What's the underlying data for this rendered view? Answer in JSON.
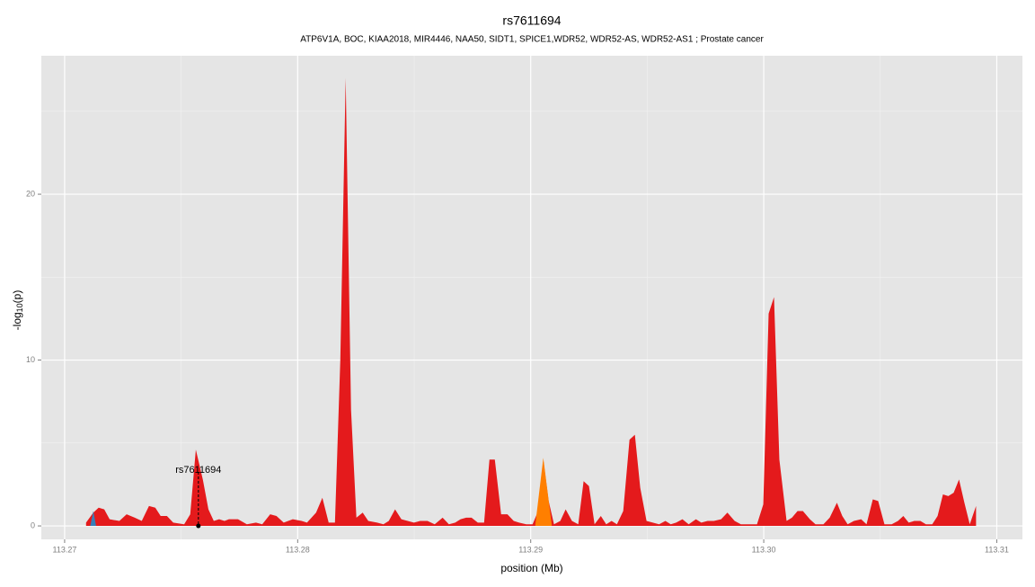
{
  "chart_data": {
    "type": "area",
    "title": "rs7611694",
    "subtitle": "ATP6V1A, BOC, KIAA2018, MIR4446, NAA50, SIDT1, SPICE1,WDR52, WDR52-AS, WDR52-AS1 ; Prostate cancer",
    "xlabel": "position (Mb)",
    "ylabel": [
      "-log",
      "10",
      "(p)"
    ],
    "xlim": [
      113.269,
      113.3111
    ],
    "ylim": [
      -0.81,
      28.35
    ],
    "xticks": [
      113.27,
      113.28,
      113.29,
      {
        "value": 113.3,
        "label": "113.30"
      },
      113.31
    ],
    "yticks": [
      0,
      10,
      20
    ],
    "grid": true,
    "annotation": {
      "text": "rs7611694",
      "x": 113.27574,
      "y": 0
    },
    "series": [
      {
        "color": "#e41a1c",
        "x": [
          113.27092,
          113.27123,
          113.27146,
          113.2717,
          113.27193,
          113.27235,
          113.27266,
          113.27301,
          113.27331,
          113.27362,
          113.27389,
          113.27412,
          113.27439,
          113.27466,
          113.27513,
          113.27539,
          113.27563,
          113.27593,
          113.27617,
          113.2764,
          113.27663,
          113.27686,
          113.27705,
          113.27744,
          113.27782,
          113.27821,
          113.27848,
          113.27882,
          113.27909,
          113.2794,
          113.27979,
          113.28017,
          113.2804,
          113.28079,
          113.28106,
          113.28133,
          113.2816,
          113.28183,
          113.28206,
          113.28229,
          113.28252,
          113.28279,
          113.28303,
          113.28341,
          113.28368,
          113.28391,
          113.28418,
          113.28445,
          113.28472,
          113.28499,
          113.28526,
          113.28557,
          113.28588,
          113.28622,
          113.28649,
          113.28676,
          113.28699,
          113.28723,
          113.28746,
          113.28773,
          113.288,
          113.28823,
          113.28846,
          113.28873,
          113.289,
          113.28927,
          113.2895,
          113.28981,
          113.29008,
          113.29035,
          113.29054,
          113.29077,
          113.291,
          113.29127,
          113.2915,
          113.29177,
          113.29204,
          113.29227,
          113.2925,
          113.29274,
          113.29301,
          113.29324,
          113.29347,
          113.2937,
          113.29397,
          113.29424,
          113.29447,
          113.2947,
          113.29497,
          113.29524,
          113.29551,
          113.29578,
          113.29601,
          113.29624,
          113.29651,
          113.29678,
          113.29709,
          113.29732,
          113.29759,
          113.29786,
          113.29817,
          113.29844,
          113.29875,
          113.29902,
          113.29933,
          113.29971,
          113.29998,
          113.30021,
          113.30044,
          113.30067,
          113.30098,
          113.30121,
          113.30145,
          113.30168,
          113.30198,
          113.30222,
          113.30256,
          113.30283,
          113.30314,
          113.30337,
          113.3036,
          113.30387,
          113.30418,
          113.30441,
          113.30468,
          113.30491,
          113.30518,
          113.30549,
          113.30576,
          113.30599,
          113.30622,
          113.30646,
          113.30672,
          113.30696,
          113.30723,
          113.30746,
          113.30769,
          113.30792,
          113.30815,
          113.30838,
          113.30861,
          113.30884,
          113.30911
        ],
        "values": [
          0.2,
          0.8,
          1.1,
          1.0,
          0.4,
          0.3,
          0.7,
          0.5,
          0.3,
          1.2,
          1.1,
          0.6,
          0.6,
          0.2,
          0.1,
          0.7,
          4.6,
          2.8,
          1.0,
          0.3,
          0.4,
          0.3,
          0.4,
          0.4,
          0.1,
          0.2,
          0.1,
          0.7,
          0.6,
          0.2,
          0.4,
          0.3,
          0.2,
          0.8,
          1.7,
          0.2,
          0.2,
          10,
          27,
          7,
          0.5,
          0.8,
          0.3,
          0.2,
          0.1,
          0.3,
          1.0,
          0.4,
          0.3,
          0.2,
          0.3,
          0.3,
          0.1,
          0.5,
          0.1,
          0.2,
          0.4,
          0.5,
          0.5,
          0.2,
          0.2,
          4.0,
          4.0,
          0.7,
          0.7,
          0.3,
          0.2,
          0.1,
          0.1,
          1.0,
          4.0,
          1.5,
          0.1,
          0.3,
          1.0,
          0.3,
          0.1,
          2.7,
          2.4,
          0.1,
          0.6,
          0.1,
          0.3,
          0.1,
          0.9,
          5.2,
          5.5,
          2.3,
          0.3,
          0.2,
          0.1,
          0.3,
          0.1,
          0.2,
          0.4,
          0.1,
          0.4,
          0.2,
          0.3,
          0.3,
          0.4,
          0.8,
          0.3,
          0.1,
          0.1,
          0.1,
          1.3,
          12.8,
          13.8,
          4,
          0.3,
          0.5,
          0.9,
          0.9,
          0.4,
          0.1,
          0.1,
          0.5,
          1.4,
          0.6,
          0.1,
          0.3,
          0.4,
          0.1,
          1.6,
          1.5,
          0.1,
          0.1,
          0.3,
          0.6,
          0.2,
          0.3,
          0.3,
          0.1,
          0.1,
          0.6,
          1.9,
          1.8,
          2.0,
          2.8,
          1.4,
          0.1,
          1.2
        ]
      },
      {
        "color": "#ff7f00",
        "x": [
          113.2902,
          113.29054,
          113.2909
        ],
        "values": [
          0.1,
          4.1,
          0.1
        ]
      },
      {
        "color": "#377eb8",
        "x": [
          113.2711,
          113.27123,
          113.27135
        ],
        "values": [
          0,
          0.9,
          0
        ]
      }
    ]
  }
}
